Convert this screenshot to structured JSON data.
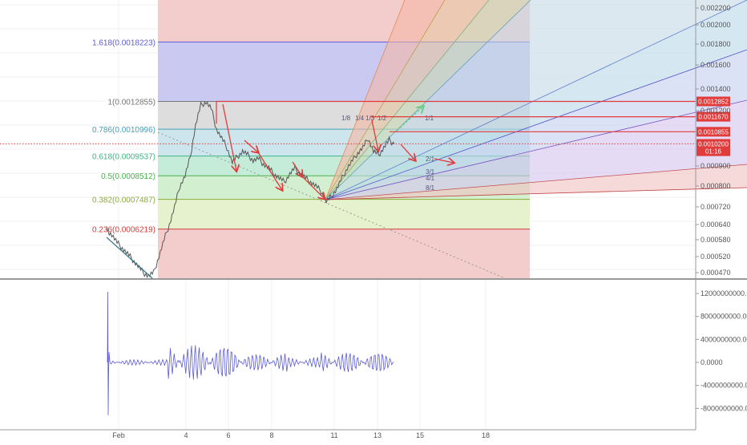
{
  "chart_data": [
    {
      "type": "line",
      "panel": "price",
      "y_axis_ticks": [
        "0.002200",
        "0.002000",
        "0.001800",
        "0.001600",
        "0.001400",
        "0.001200",
        "0.000900",
        "0.000800",
        "0.000720",
        "0.000640",
        "0.000580",
        "0.000520",
        "0.000470"
      ],
      "y_axis_tick_values": [
        0.0022,
        0.002,
        0.0018,
        0.0016,
        0.0014,
        0.0012,
        0.0009,
        0.0008,
        0.00072,
        0.00064,
        0.00058,
        0.00052,
        0.00047
      ],
      "fib_levels": [
        {
          "label": "1.618(0.0018223)",
          "value": 0.0018223,
          "color": "#5c5cd6",
          "fill": "#c9c9f2"
        },
        {
          "label": "1(0.0012855)",
          "value": 0.0012855,
          "color": "#777777",
          "fill": "#dddddd"
        },
        {
          "label": "0.786(0.0010996)",
          "value": 0.0010996,
          "color": "#4a9fb5",
          "fill": "#cde6ee"
        },
        {
          "label": "0.618(0.0009537)",
          "value": 0.0009537,
          "color": "#3fb585",
          "fill": "#c4ecd9"
        },
        {
          "label": "0.5(0.0008512)",
          "value": 0.0008512,
          "color": "#4caf50",
          "fill": "#d2efcf"
        },
        {
          "label": "0.382(0.0007487)",
          "value": 0.0007487,
          "color": "#8bab3c",
          "fill": "#e6f1cd"
        },
        {
          "label": "0.236(0.0006219)",
          "value": 0.0006219,
          "color": "#d43b3b",
          "fill": "#f3cccc"
        }
      ],
      "price_tags": [
        {
          "text": "0.0012852",
          "value": 0.0012852,
          "color": "#e23b3b"
        },
        {
          "text": "0.0011670",
          "value": 0.001167,
          "color": "#e23b3b"
        },
        {
          "text": "0.0010855",
          "value": 0.0010855,
          "color": "#e23b3b"
        },
        {
          "text": "0.0010200",
          "value": 0.00102,
          "color": "#e23b3b"
        },
        {
          "text": "01:16",
          "value": 0.00098,
          "color": "#e23b3b"
        }
      ],
      "fan_labels": [
        "1/8",
        "1/4",
        "1/3",
        "1/2",
        "1/1",
        "2/1",
        "3/1",
        "4/1",
        "8/1"
      ],
      "series": [
        {
          "values": [
            0.00062,
            0.0006,
            0.00057,
            0.00055,
            0.00053,
            0.00051,
            0.00049,
            0.00047,
            0.00046,
            0.00047,
            0.00052,
            0.00058,
            0.00064,
            0.00072,
            0.0008,
            0.00085,
            0.00095,
            0.00112,
            0.00125,
            0.00128,
            0.00122,
            0.0011,
            0.00105,
            0.001,
            0.00092,
            0.00095,
            0.00098,
            0.00096,
            0.00093,
            0.00094,
            0.00091,
            0.00089,
            0.00086,
            0.00084,
            0.00082,
            0.00086,
            0.00089,
            0.00086,
            0.00084,
            0.00082,
            0.0008,
            0.00078,
            0.00074,
            0.00076,
            0.00079,
            0.00084,
            0.00089,
            0.00093,
            0.00097,
            0.001,
            0.00105,
            0.00098,
            0.00096,
            0.001,
            0.00104,
            0.00102
          ]
        }
      ]
    },
    {
      "type": "line",
      "panel": "oscillator",
      "y_axis_ticks": [
        "12000000000.00",
        "8000000000.00",
        "4000000000.00",
        "0.0000",
        "-4000000000.00",
        "-8000000000.00"
      ],
      "y_axis_tick_values": [
        12000000000,
        8000000000,
        4000000000,
        0,
        -4000000000,
        -8000000000
      ],
      "x_axis_ticks": [
        "Feb",
        "4",
        "6",
        "8",
        "11",
        "13",
        "15",
        "18"
      ]
    }
  ],
  "colors": {
    "price_line": "#555555",
    "arrow": "#e23b3b",
    "arrow_up": "#5ccf74",
    "osc_line": "#5b5bd6",
    "crosshair": "#e23b3b"
  }
}
